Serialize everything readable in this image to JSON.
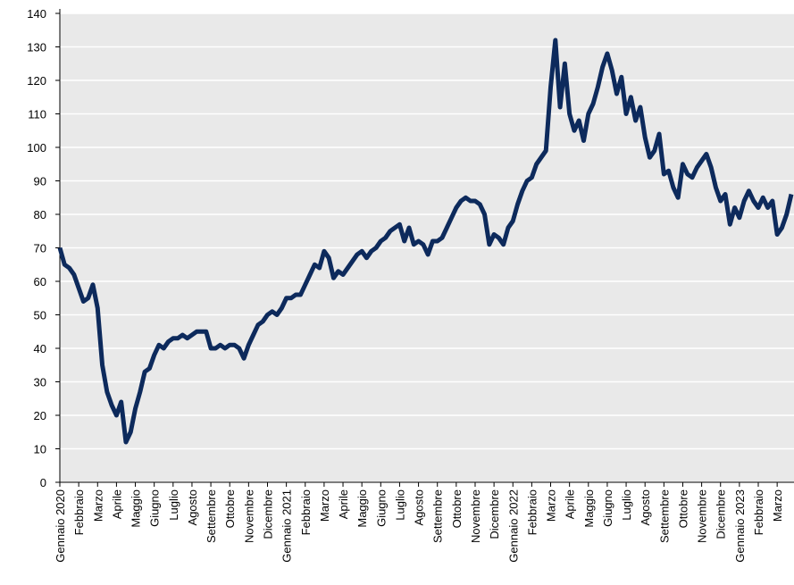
{
  "chart_data": {
    "type": "line",
    "categories": [
      "Gennaio 2020",
      null,
      null,
      null,
      "Febbraio",
      null,
      null,
      null,
      "Marzo",
      null,
      null,
      null,
      "Aprile",
      null,
      null,
      null,
      "Maggio",
      null,
      null,
      null,
      "Giugno",
      null,
      null,
      null,
      "Luglio",
      null,
      null,
      null,
      "Agosto",
      null,
      null,
      null,
      "Settembre",
      null,
      null,
      null,
      "Ottobre",
      null,
      null,
      null,
      "Novembre",
      null,
      null,
      null,
      "Dicembre",
      null,
      null,
      null,
      "Gennaio 2021",
      null,
      null,
      null,
      "Febbraio",
      null,
      null,
      null,
      "Marzo",
      null,
      null,
      null,
      "Aprile",
      null,
      null,
      null,
      "Maggio",
      null,
      null,
      null,
      "Giugno",
      null,
      null,
      null,
      "Luglio",
      null,
      null,
      null,
      "Agosto",
      null,
      null,
      null,
      "Settembre",
      null,
      null,
      null,
      "Ottobre",
      null,
      null,
      null,
      "Novembre",
      null,
      null,
      null,
      "Dicembre",
      null,
      null,
      null,
      "Gennaio 2022",
      null,
      null,
      null,
      "Febbraio",
      null,
      null,
      null,
      "Marzo",
      null,
      null,
      null,
      "Aprile",
      null,
      null,
      null,
      "Maggio",
      null,
      null,
      null,
      "Giugno",
      null,
      null,
      null,
      "Luglio",
      null,
      null,
      null,
      "Agosto",
      null,
      null,
      null,
      "Settembre",
      null,
      null,
      null,
      "Ottobre",
      null,
      null,
      null,
      "Novembre",
      null,
      null,
      null,
      "Dicembre",
      null,
      null,
      null,
      "Gennaio 2023",
      null,
      null,
      null,
      "Febbraio",
      null,
      null,
      null,
      "Marzo",
      null,
      null,
      null
    ],
    "values": [
      70,
      65,
      64,
      62,
      58,
      54,
      55,
      59,
      52,
      35,
      27,
      23,
      20,
      24,
      12,
      15,
      22,
      27,
      33,
      34,
      38,
      41,
      40,
      42,
      43,
      43,
      44,
      43,
      44,
      45,
      45,
      45,
      40,
      40,
      41,
      40,
      41,
      41,
      40,
      37,
      41,
      44,
      47,
      48,
      50,
      51,
      50,
      52,
      55,
      55,
      56,
      56,
      59,
      62,
      65,
      64,
      69,
      67,
      61,
      63,
      62,
      64,
      66,
      68,
      69,
      67,
      69,
      70,
      72,
      73,
      75,
      76,
      77,
      72,
      76,
      71,
      72,
      71,
      68,
      72,
      72,
      73,
      76,
      79,
      82,
      84,
      85,
      84,
      84,
      83,
      80,
      71,
      74,
      73,
      71,
      76,
      78,
      83,
      87,
      90,
      91,
      95,
      97,
      99,
      118,
      132,
      112,
      125,
      110,
      105,
      108,
      102,
      110,
      113,
      118,
      124,
      128,
      123,
      116,
      121,
      110,
      115,
      108,
      112,
      103,
      97,
      99,
      104,
      92,
      93,
      88,
      85,
      95,
      92,
      91,
      94,
      96,
      98,
      94,
      88,
      84,
      86,
      77,
      82,
      79,
      84,
      87,
      84,
      82,
      85,
      82,
      84,
      74,
      76,
      80,
      86
    ],
    "color": "#0d2a5c",
    "ylim": [
      0,
      140
    ],
    "yticks": [
      0,
      10,
      20,
      30,
      40,
      50,
      60,
      70,
      80,
      90,
      100,
      110,
      120,
      130,
      140
    ],
    "grid": true
  }
}
